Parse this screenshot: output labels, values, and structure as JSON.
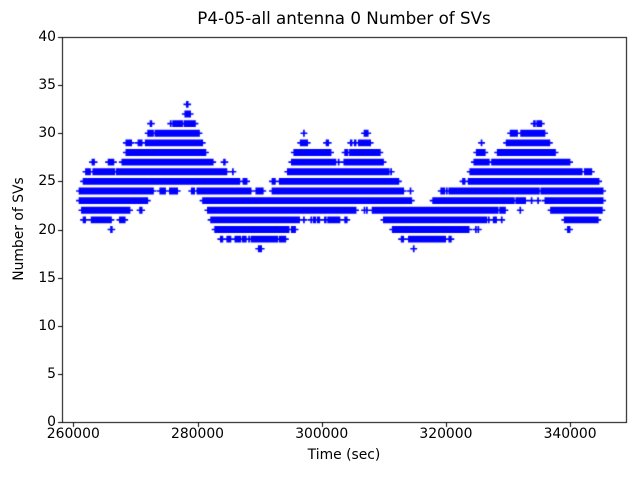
{
  "figure": {
    "background": "#ffffff",
    "spine_color": "#000000",
    "text_color": "#000000"
  },
  "chart_data": {
    "type": "scatter",
    "title": "P4-05-all antenna 0 Number of SVs",
    "xlabel": "Time (sec)",
    "ylabel": "Number of SVs",
    "marker": "plus",
    "marker_color": "#0000ff",
    "marker_size_px": 7,
    "grid": false,
    "legend": null,
    "xlim": [
      258180,
      349000
    ],
    "ylim": [
      0,
      40
    ],
    "xticks": [
      260000,
      280000,
      300000,
      320000,
      340000
    ],
    "yticks": [
      0,
      5,
      10,
      15,
      20,
      25,
      30,
      35,
      40
    ],
    "x_units": "sec",
    "time_start_sec": 261000,
    "time_end_sec": 345300,
    "sv_min_observed": 18,
    "sv_max_observed": 33,
    "description": "Dense band of integer SV-count samples vs time; envelope points are [time_sec, min_svs, max_svs] of the band.",
    "envelope": [
      [
        261000,
        22,
        25
      ],
      [
        261600,
        21,
        26
      ],
      [
        262500,
        21,
        27.1
      ],
      [
        263500,
        20,
        27.1
      ],
      [
        264500,
        20,
        26.6
      ],
      [
        265500,
        20,
        27.6
      ],
      [
        266100,
        20,
        28.3
      ],
      [
        266700,
        21,
        26.6
      ],
      [
        268000,
        21,
        27.2
      ],
      [
        269000,
        21.5,
        30.2
      ],
      [
        269700,
        22,
        28.6
      ],
      [
        270500,
        22,
        29.4
      ],
      [
        271500,
        22.6,
        29.1
      ],
      [
        272400,
        23,
        31.1
      ],
      [
        273100,
        23.6,
        30.4
      ],
      [
        274100,
        23.6,
        31.2
      ],
      [
        275100,
        23.6,
        31.1
      ],
      [
        276000,
        23,
        31.1
      ],
      [
        276900,
        24,
        32.2
      ],
      [
        277600,
        24.6,
        31.4
      ],
      [
        278300,
        24.6,
        33.2
      ],
      [
        279000,
        24,
        32.1
      ],
      [
        279900,
        23.6,
        31
      ],
      [
        280700,
        23,
        29.4
      ],
      [
        281600,
        21.6,
        28.2
      ],
      [
        282400,
        20,
        27.2
      ],
      [
        283100,
        18.7,
        26.5
      ],
      [
        284300,
        18.7,
        27.2
      ],
      [
        285100,
        18.7,
        26.4
      ],
      [
        286100,
        18.7,
        26.3
      ],
      [
        287100,
        18.7,
        25.4
      ],
      [
        288100,
        18.5,
        25
      ],
      [
        289100,
        18.3,
        24.3
      ],
      [
        290100,
        18.2,
        24.6
      ],
      [
        291100,
        18.2,
        24.2
      ],
      [
        292100,
        18.4,
        25
      ],
      [
        293100,
        18.7,
        25.2
      ],
      [
        294100,
        18.8,
        26
      ],
      [
        295100,
        20,
        27.5
      ],
      [
        296100,
        20.4,
        29.1
      ],
      [
        297000,
        20.6,
        30.2
      ],
      [
        298000,
        20.8,
        29.2
      ],
      [
        299000,
        20.6,
        28.4
      ],
      [
        300000,
        20.4,
        28
      ],
      [
        300900,
        20.4,
        30
      ],
      [
        301600,
        20.4,
        28.4
      ],
      [
        302400,
        20,
        27.1
      ],
      [
        303100,
        20.5,
        27.6
      ],
      [
        304100,
        21,
        28.5
      ],
      [
        305100,
        21.4,
        29.2
      ],
      [
        306100,
        21.8,
        29.6
      ],
      [
        306900,
        22,
        30.3
      ],
      [
        307700,
        21.8,
        30.2
      ],
      [
        308500,
        21.4,
        29.1
      ],
      [
        309300,
        21,
        28.1
      ],
      [
        310100,
        20.5,
        27.1
      ],
      [
        311100,
        20,
        26.1
      ],
      [
        312100,
        19.4,
        25.1
      ],
      [
        313100,
        19,
        24.3
      ],
      [
        314100,
        18.3,
        24
      ],
      [
        315100,
        18,
        23.3
      ],
      [
        316100,
        18,
        23.1
      ],
      [
        317100,
        17.9,
        23.2
      ],
      [
        318100,
        18,
        23.8
      ],
      [
        319100,
        18.2,
        24
      ],
      [
        320100,
        18.3,
        24.2
      ],
      [
        321100,
        19,
        24.3
      ],
      [
        322100,
        19,
        24.8
      ],
      [
        323100,
        19.3,
        25.2
      ],
      [
        324100,
        19.8,
        26.3
      ],
      [
        325300,
        20,
        29.2
      ],
      [
        326100,
        20.4,
        28.8
      ],
      [
        327100,
        21,
        27.4
      ],
      [
        328100,
        21,
        28.1
      ],
      [
        329100,
        21.4,
        29.3
      ],
      [
        330100,
        21.8,
        29.8
      ],
      [
        331100,
        22,
        30.2
      ],
      [
        332100,
        22.4,
        30.6
      ],
      [
        333100,
        22.8,
        31.3
      ],
      [
        334100,
        23,
        31.3
      ],
      [
        335200,
        23.4,
        31.2
      ],
      [
        336100,
        22.8,
        30.2
      ],
      [
        337100,
        22,
        29.3
      ],
      [
        338000,
        21.4,
        28.4
      ],
      [
        339000,
        20.6,
        28.3
      ],
      [
        340000,
        20,
        27.3
      ],
      [
        341000,
        20,
        26.8
      ],
      [
        342000,
        20,
        26.6
      ],
      [
        342800,
        20,
        27.3
      ],
      [
        343600,
        20,
        26.2
      ],
      [
        344400,
        20.4,
        25.5
      ],
      [
        345300,
        21.4,
        25
      ]
    ]
  }
}
